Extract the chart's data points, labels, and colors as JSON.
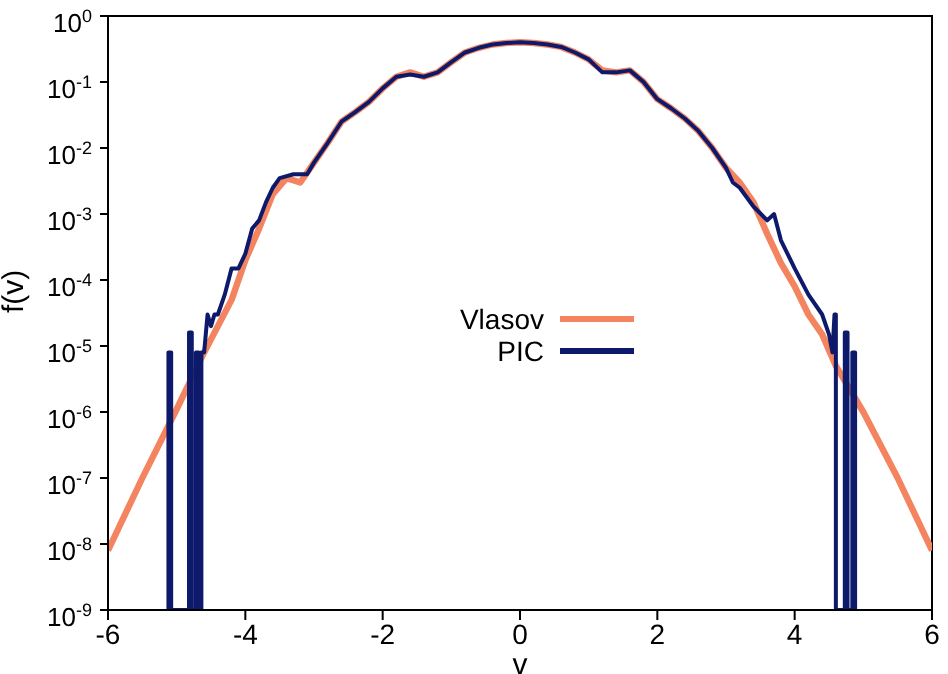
{
  "chart_data": {
    "type": "line",
    "xlabel": "v",
    "ylabel": "f(v)",
    "log": "y",
    "xlim": [
      -6,
      6
    ],
    "xticks": [
      -6,
      -4,
      -2,
      0,
      2,
      4,
      6
    ],
    "ylim": [
      1e-09,
      1
    ],
    "yticks": [
      {
        "value": 1e-09,
        "label": "10$^{-9}$"
      },
      {
        "value": 1e-08,
        "label": "10$^{-8}$"
      },
      {
        "value": 1e-07,
        "label": "10$^{-7}$"
      },
      {
        "value": 1e-06,
        "label": "10$^{-6}$"
      },
      {
        "value": 1e-05,
        "label": "10$^{-5}$"
      },
      {
        "value": 0.0001,
        "label": "10$^{-4}$"
      },
      {
        "value": 0.001,
        "label": "10$^{-3}$"
      },
      {
        "value": 0.01,
        "label": "10$^{-2}$"
      },
      {
        "value": 0.1,
        "label": "10$^{-1}$"
      },
      {
        "value": 1,
        "label": "10$^{0}$"
      }
    ],
    "legend": "center",
    "grid": false,
    "marker": "none",
    "line_style": "solid",
    "series": [
      {
        "name": "Vlasov",
        "color": "#f4845f",
        "x": [
          -6,
          -5.5,
          -5,
          -4.6,
          -4.4,
          -4.2,
          -4,
          -3.8,
          -3.6,
          -3.4,
          -3.2,
          -3,
          -2.8,
          -2.6,
          -2.4,
          -2.2,
          -2,
          -1.8,
          -1.6,
          -1.4,
          -1.2,
          -1,
          -0.8,
          -0.6,
          -0.4,
          -0.2,
          0,
          0.2,
          0.4,
          0.6,
          0.8,
          1,
          1.2,
          1.4,
          1.6,
          1.8,
          2,
          2.2,
          2.4,
          2.6,
          2.8,
          3,
          3.2,
          3.4,
          3.6,
          3.8,
          4,
          4.2,
          4.4,
          4.6,
          5,
          5.5,
          6
        ],
        "values": [
          8e-09,
          1e-07,
          1.1e-06,
          8e-06,
          2e-05,
          5e-05,
          0.0002,
          0.0006,
          0.002,
          0.0035,
          0.003,
          0.006,
          0.012,
          0.025,
          0.035,
          0.05,
          0.08,
          0.12,
          0.14,
          0.12,
          0.14,
          0.2,
          0.28,
          0.33,
          0.37,
          0.39,
          0.4,
          0.39,
          0.37,
          0.34,
          0.28,
          0.22,
          0.15,
          0.14,
          0.15,
          0.1,
          0.055,
          0.04,
          0.028,
          0.018,
          0.01,
          0.005,
          0.003,
          0.0015,
          0.0005,
          0.00018,
          8e-05,
          3e-05,
          1.5e-05,
          5e-06,
          1e-06,
          1e-07,
          8e-09
        ]
      },
      {
        "name": "PIC",
        "color": "#0d1a6b",
        "x": [
          -5.12,
          -5.12,
          -5.08,
          -5.08,
          -4.82,
          -4.82,
          -4.78,
          -4.78,
          -4.72,
          -4.72,
          -4.68,
          -4.68,
          -4.64,
          -4.64,
          -4.6,
          -4.55,
          -4.5,
          -4.45,
          -4.4,
          -4.3,
          -4.2,
          -4.1,
          -4,
          -3.9,
          -3.8,
          -3.7,
          -3.6,
          -3.5,
          -3.3,
          -3.1,
          -3,
          -2.8,
          -2.6,
          -2.4,
          -2.2,
          -2,
          -1.8,
          -1.6,
          -1.4,
          -1.2,
          -1,
          -0.8,
          -0.6,
          -0.4,
          -0.2,
          0,
          0.2,
          0.4,
          0.6,
          0.8,
          1,
          1.2,
          1.4,
          1.6,
          1.8,
          2,
          2.2,
          2.4,
          2.6,
          2.8,
          3,
          3.1,
          3.2,
          3.4,
          3.6,
          3.7,
          3.8,
          4,
          4.2,
          4.4,
          4.5,
          4.55,
          4.58,
          4.6,
          4.6,
          4.73,
          4.73,
          4.77,
          4.77,
          4.84,
          4.84,
          4.88,
          4.88
        ],
        "values": [
          1e-09,
          8e-06,
          8e-06,
          1e-09,
          1e-09,
          1.6e-05,
          1.6e-05,
          1e-09,
          1e-09,
          8e-06,
          8e-06,
          1e-09,
          1e-09,
          8e-06,
          8e-06,
          3e-05,
          2e-05,
          3e-05,
          3e-05,
          6e-05,
          0.00015,
          0.00015,
          0.00025,
          0.0006,
          0.0008,
          0.0015,
          0.0025,
          0.0035,
          0.004,
          0.004,
          0.006,
          0.012,
          0.025,
          0.035,
          0.05,
          0.08,
          0.12,
          0.13,
          0.12,
          0.14,
          0.2,
          0.28,
          0.33,
          0.37,
          0.39,
          0.4,
          0.39,
          0.37,
          0.34,
          0.28,
          0.22,
          0.14,
          0.14,
          0.15,
          0.1,
          0.055,
          0.04,
          0.028,
          0.018,
          0.01,
          0.005,
          0.003,
          0.0025,
          0.0013,
          0.0008,
          0.001,
          0.0004,
          0.00015,
          6e-05,
          3e-05,
          1.5e-05,
          8e-06,
          3e-05,
          3e-05,
          1e-09,
          1e-09,
          1.6e-05,
          1.6e-05,
          1e-09,
          1e-09,
          8e-06,
          8e-06,
          1e-09
        ]
      }
    ]
  }
}
